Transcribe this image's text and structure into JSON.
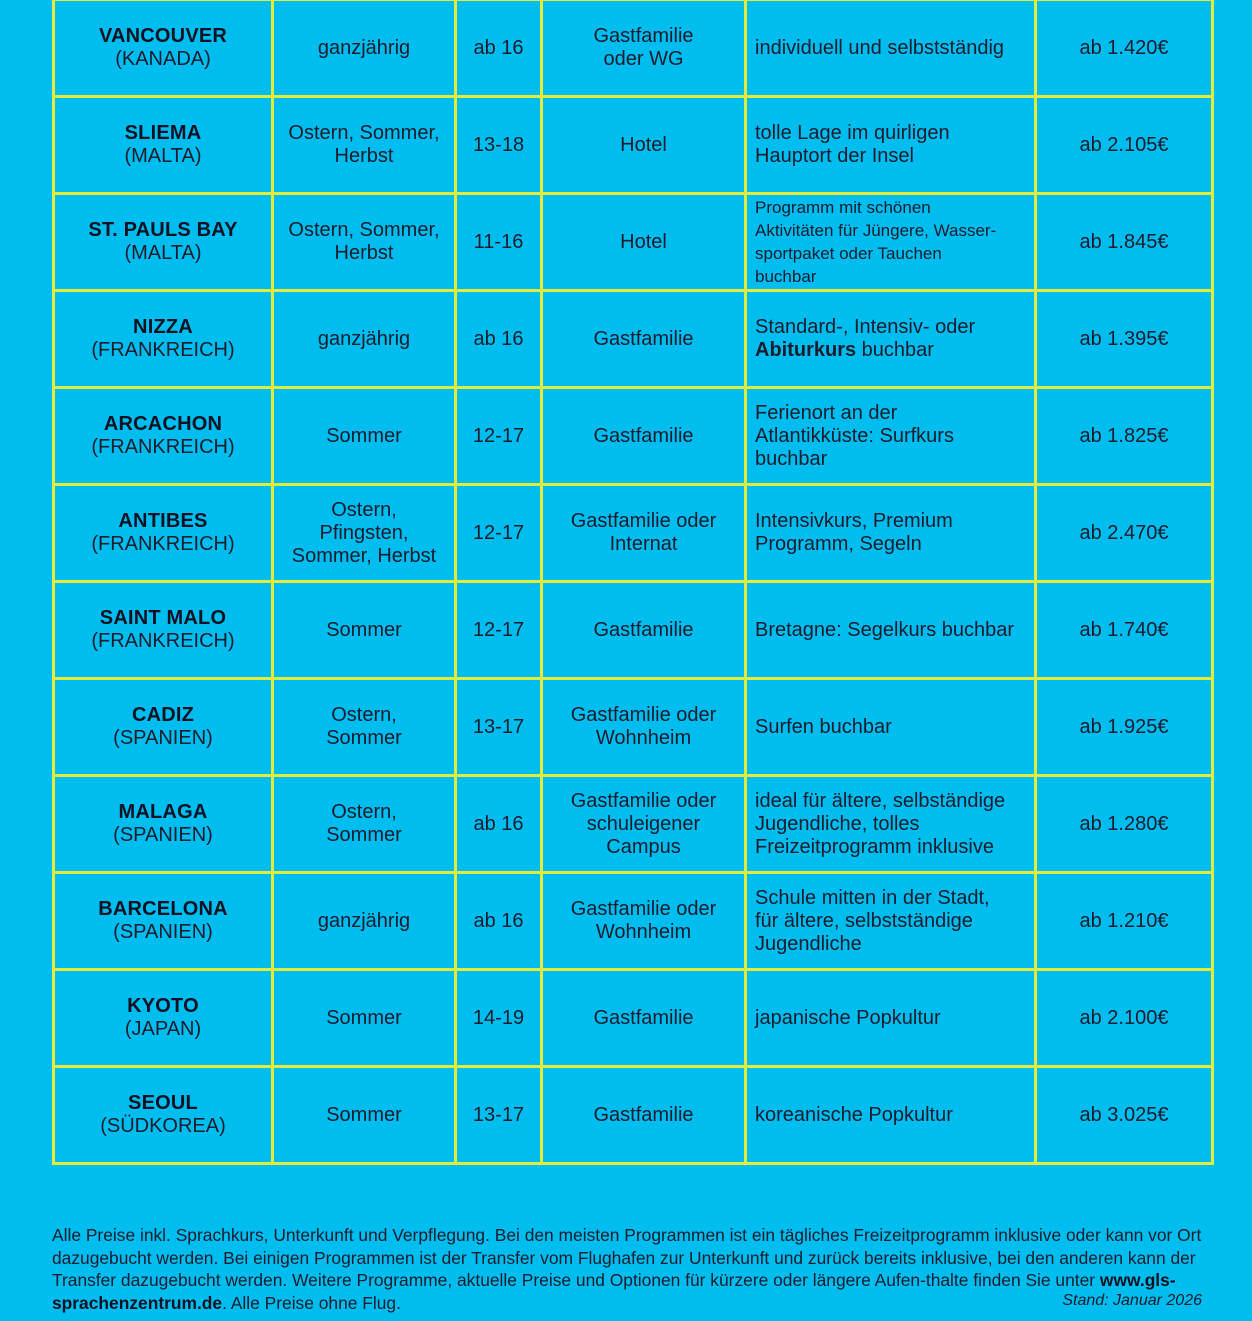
{
  "rows": [
    {
      "city": "VANCOUVER",
      "country": "(KANADA)",
      "season": "ganzjährig",
      "age": "ab 16",
      "housing": "Gastfamilie oder WG",
      "desc": "individuell und selbstständig",
      "price": "ab 1.420€"
    },
    {
      "city": "SLIEMA",
      "country": "(MALTA)",
      "season": "Ostern, Sommer, Herbst",
      "age": "13-18",
      "housing": "Hotel",
      "desc": "tolle Lage im quirligen Hauptort der Insel",
      "price": "ab 2.105€"
    },
    {
      "city": "ST. PAULS BAY",
      "country": "(MALTA)",
      "season": "Ostern, Sommer, Herbst",
      "age": "11-16",
      "housing": "Hotel",
      "desc": "Programm mit schönen Aktivitäten für Jüngere, Wasser-sportpaket oder Tauchen buchbar",
      "price": "ab 1.845€"
    },
    {
      "city": "NIZZA",
      "country": "(FRANKREICH)",
      "season": "ganzjährig",
      "age": "ab 16",
      "housing": "Gastfamilie",
      "desc_pre": "Standard-, Intensiv- oder",
      "desc_bold": "Abiturkurs",
      "desc_post": "buchbar",
      "price": "ab 1.395€"
    },
    {
      "city": "ARCACHON",
      "country": "(FRANKREICH)",
      "season": "Sommer",
      "age": "12-17",
      "housing": "Gastfamilie",
      "desc": "Ferienort an der Atlantikküste: Surfkurs buchbar",
      "price": "ab 1.825€"
    },
    {
      "city": "ANTIBES",
      "country": "(FRANKREICH)",
      "season": "Ostern, Pfingsten, Sommer, Herbst",
      "age": "12-17",
      "housing": "Gastfamilie oder Internat",
      "desc": "Intensivkurs, Premium Programm, Segeln",
      "price": "ab 2.470€"
    },
    {
      "city": "SAINT MALO",
      "country": "(FRANKREICH)",
      "season": "Sommer",
      "age": "12-17",
      "housing": "Gastfamilie",
      "desc": "Bretagne: Segelkurs buchbar",
      "price": "ab 1.740€"
    },
    {
      "city": "CADIZ",
      "country": "(SPANIEN)",
      "season": "Ostern, Sommer",
      "age": "13-17",
      "housing": "Gastfamilie oder Wohnheim",
      "desc": "Surfen buchbar",
      "price": "ab 1.925€"
    },
    {
      "city": "MALAGA",
      "country": "(SPANIEN)",
      "season": "Ostern, Sommer",
      "age": "ab 16",
      "housing": "Gastfamilie oder schuleigener Campus",
      "desc": "ideal für ältere, selbständige Jugendliche, tolles Freizeitprogramm inklusive",
      "price": "ab 1.280€"
    },
    {
      "city": "BARCELONA",
      "country": "(SPANIEN)",
      "season": "ganzjährig",
      "age": "ab 16",
      "housing": "Gastfamilie oder Wohnheim",
      "desc": "Schule mitten in der Stadt, für ältere, selbstständige Jugendliche",
      "price": "ab 1.210€"
    },
    {
      "city": "KYOTO",
      "country": "(JAPAN)",
      "season": "Sommer",
      "age": "14-19",
      "housing": "Gastfamilie",
      "desc": "japanische Popkultur",
      "price": "ab 2.100€"
    },
    {
      "city": "SEOUL",
      "country": "(SÜDKOREA)",
      "season": "Sommer",
      "age": "13-17",
      "housing": "Gastfamilie",
      "desc": "koreanische Popkultur",
      "price": "ab 3.025€"
    }
  ],
  "footer": {
    "text_before_url": "Alle Preise inkl. Sprachkurs, Unterkunft und Verpflegung. Bei den meisten Programmen ist ein tägliches Freizeitprogramm inklusive oder kann vor Ort dazugebucht werden. Bei einigen Programmen ist der Transfer vom Flughafen zur Unterkunft und zurück bereits inklusive, bei den anderen kann der Transfer dazugebucht werden. Weitere Programme, aktuelle Preise und Optionen für kürzere oder längere Aufen-thalte finden Sie unter",
    "url": "www.gls-sprachenzentrum.de",
    "text_after_url": ". Alle Preise ohne Flug.",
    "stand": "Stand: Januar 2026"
  },
  "colors": {
    "background": "#00bdf0",
    "grid": "#e3ec3c",
    "text": "#1c1c2c"
  }
}
